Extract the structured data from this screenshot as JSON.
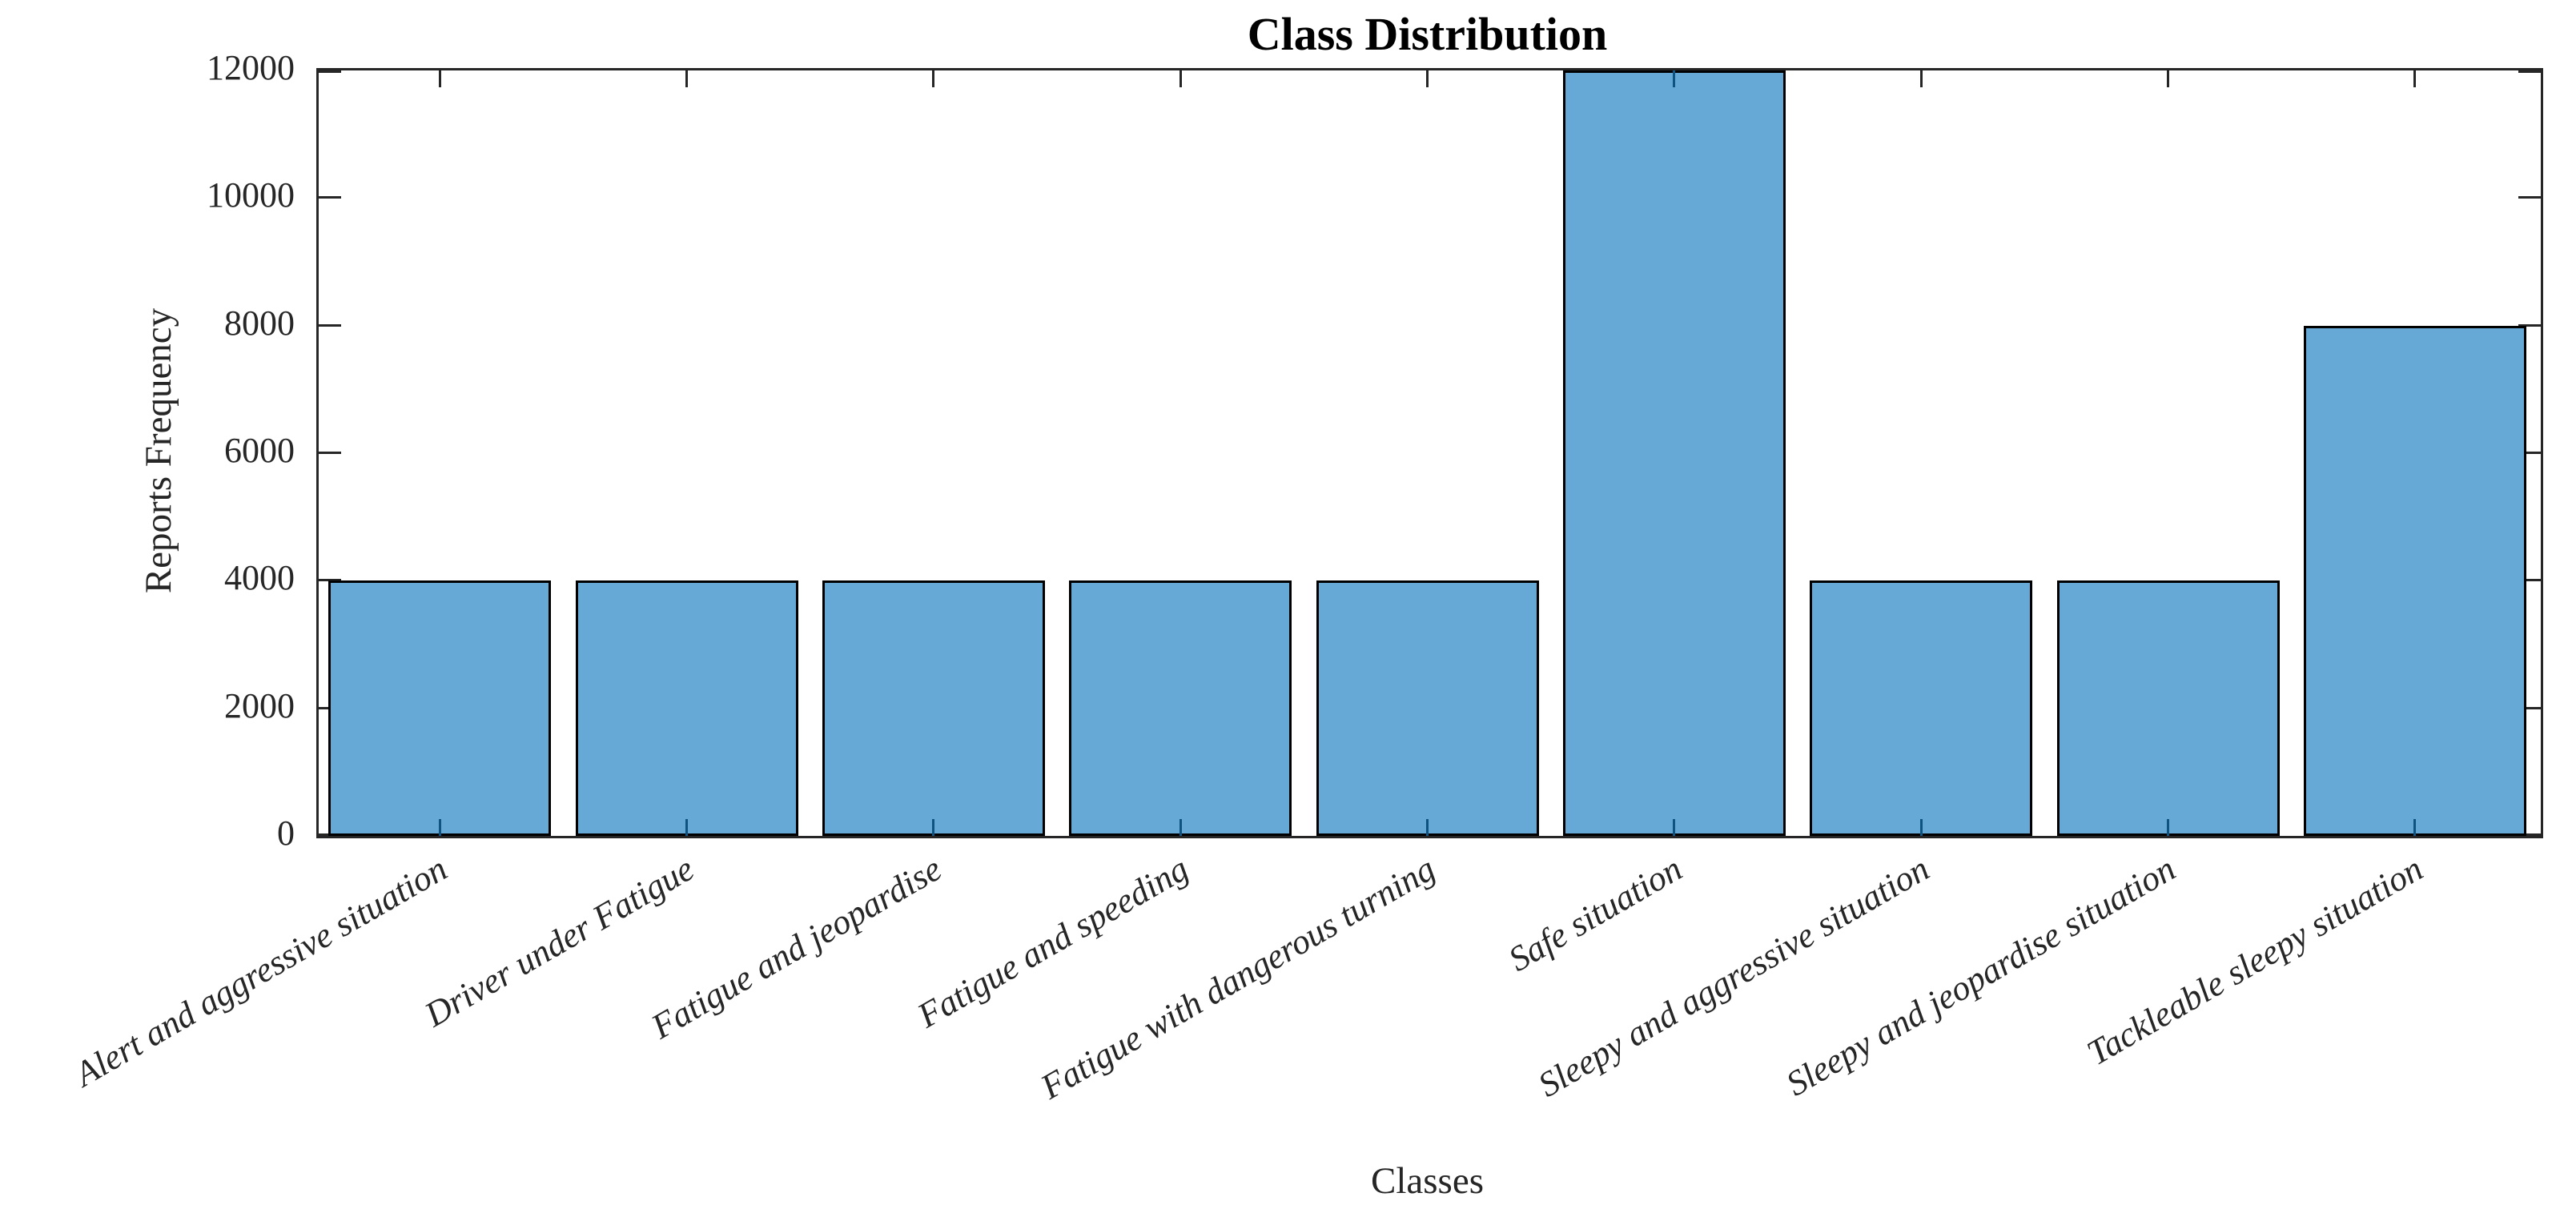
{
  "chart_data": {
    "type": "bar",
    "title": "Class Distribution",
    "xlabel": "Classes",
    "ylabel": "Reports Frequency",
    "categories": [
      "Alert and aggressive situation",
      "Driver under Fatigue",
      "Fatigue and jeopardise",
      "Fatigue and speeding",
      "Fatigue with dangerous turning",
      "Safe situation",
      "Sleepy and aggressive situation",
      "Sleepy and jeopardise situation",
      "Tackleable sleepy situation"
    ],
    "values": [
      4000,
      4000,
      4000,
      4000,
      4000,
      12000,
      4000,
      4000,
      8000
    ],
    "ylim": [
      0,
      12000
    ],
    "yticks": [
      0,
      2000,
      4000,
      6000,
      8000,
      10000,
      12000
    ],
    "xtick_rotation_deg": 30,
    "grid": false,
    "legend": null,
    "bar_width_fraction": 0.9,
    "colors": {
      "bar_fill": "#66A9D6",
      "bar_edge": "#000000",
      "axis": "#262626",
      "tick_over_bar": "#0F5480",
      "title_text": "#000000",
      "label_text": "#262626"
    }
  }
}
